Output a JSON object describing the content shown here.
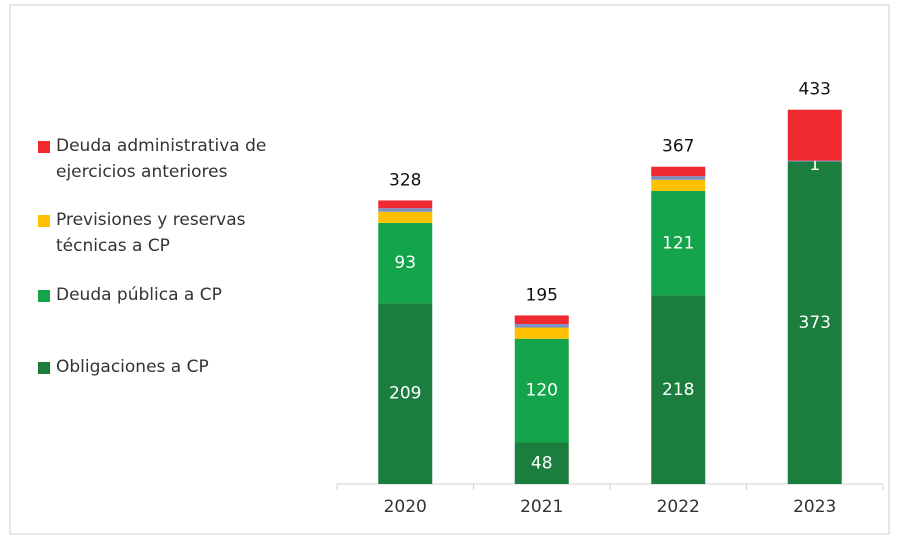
{
  "chart_data": {
    "type": "stacked_bar",
    "categories": [
      "2020",
      "2021",
      "2022",
      "2023"
    ],
    "series": [
      {
        "name": "Obligaciones a CP",
        "color": "#1b7d3e",
        "values": [
          209,
          48,
          218,
          373
        ]
      },
      {
        "name": "Deuda pública a CP",
        "color": "#14a44b",
        "values": [
          93,
          120,
          121,
          0
        ]
      },
      {
        "name": "Previsiones y reservas técnicas a CP",
        "color": "#ffc000",
        "values": [
          13,
          13,
          13,
          0
        ]
      },
      {
        "name": null,
        "color": "#7592c8",
        "values": [
          4,
          4,
          4,
          1
        ],
        "value_labels": [
          null,
          null,
          null,
          "1"
        ]
      },
      {
        "name": "Deuda administrativa de ejercicios anteriores",
        "color": "#ee2a30",
        "values": [
          9,
          10,
          11,
          59
        ]
      }
    ],
    "totals": [
      328,
      195,
      367,
      433
    ],
    "ylim": [
      0,
      450
    ]
  }
}
